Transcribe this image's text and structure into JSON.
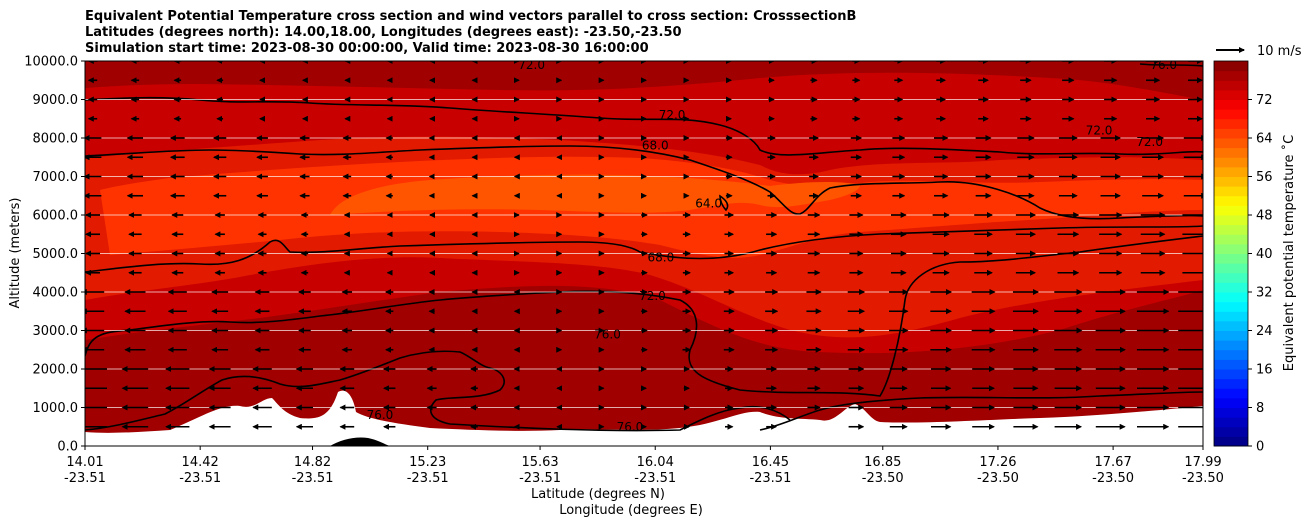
{
  "title_lines": [
    "Equivalent Potential Temperature cross section and wind vectors parallel to cross section: CrosssectionB",
    "Latitudes (degrees north): 14.00,18.00, Longitudes (degrees east): -23.50,-23.50",
    "Simulation start time: 2023-08-30 00:00:00, Valid time: 2023-08-30 16:00:00"
  ],
  "wind_key_label": "10 m/s",
  "chart_data": {
    "type": "contourf",
    "title": "Equivalent Potential Temperature cross section and wind vectors parallel to cross section: CrosssectionB",
    "ylabel": "Altitude (meters)",
    "xlabel_lat": "Latitude (degrees N)",
    "xlabel_lon": "Longitude (degrees E)",
    "ylim": [
      0,
      10000
    ],
    "yticks": [
      "0.0",
      "1000.0",
      "2000.0",
      "3000.0",
      "4000.0",
      "5000.0",
      "6000.0",
      "7000.0",
      "8000.0",
      "9000.0",
      "10000.0"
    ],
    "xtick_lat": [
      "14.01",
      "14.42",
      "14.82",
      "15.23",
      "15.63",
      "16.04",
      "16.45",
      "16.85",
      "17.26",
      "17.67",
      "17.99"
    ],
    "xtick_lon": [
      "-23.51",
      "-23.51",
      "-23.51",
      "-23.51",
      "-23.51",
      "-23.51",
      "-23.51",
      "-23.50",
      "-23.50",
      "-23.50",
      "-23.50"
    ],
    "colorbar": {
      "label": "Equivalent potential temperature ˚C",
      "min": 0,
      "max": 80,
      "step": 2,
      "ticks": [
        "0",
        "8",
        "16",
        "24",
        "32",
        "40",
        "48",
        "56",
        "64",
        "72"
      ]
    },
    "contour_labels": [
      {
        "text": "72.0",
        "lat": 15.6,
        "alt": 9900
      },
      {
        "text": "72.0",
        "lat": 16.1,
        "alt": 8600
      },
      {
        "text": "68.0",
        "lat": 16.04,
        "alt": 7800
      },
      {
        "text": "72.0",
        "lat": 17.62,
        "alt": 8200
      },
      {
        "text": "72.0",
        "lat": 17.8,
        "alt": 7900
      },
      {
        "text": "76.0",
        "lat": 17.85,
        "alt": 9900
      },
      {
        "text": "64.0",
        "lat": 16.23,
        "alt": 6300
      },
      {
        "text": "68.0",
        "lat": 16.06,
        "alt": 4900
      },
      {
        "text": "72.0",
        "lat": 16.03,
        "alt": 3900
      },
      {
        "text": "76.0",
        "lat": 15.87,
        "alt": 2900
      },
      {
        "text": "76.0",
        "lat": 15.06,
        "alt": 800
      },
      {
        "text": "76.0",
        "lat": 15.95,
        "alt": 500
      }
    ],
    "wind": {
      "levels_m": [
        500,
        1000,
        1500,
        2000,
        2500,
        3000,
        3500,
        4000,
        4500,
        5000,
        5500,
        6000,
        6500,
        7000,
        7500,
        8000,
        8500,
        9000,
        9500,
        10000
      ],
      "columns": 27,
      "reference_speed_ms": 10
    }
  }
}
